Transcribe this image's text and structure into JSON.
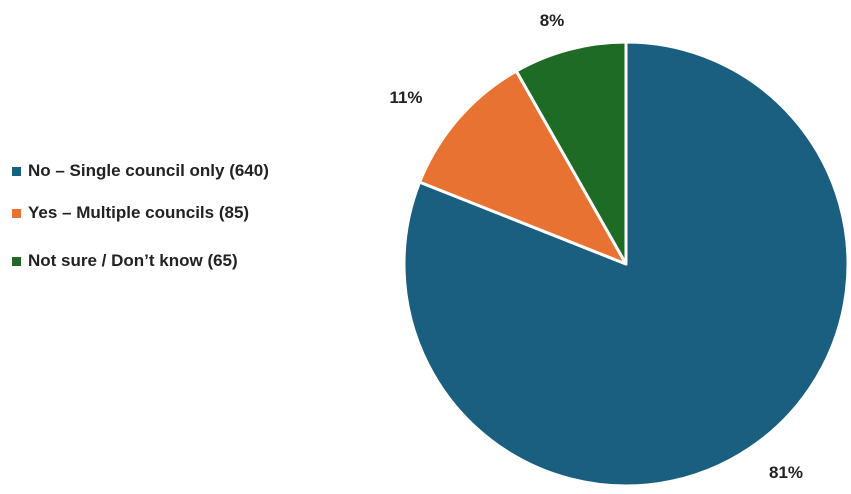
{
  "chart_data": {
    "type": "pie",
    "title": "",
    "slices": [
      {
        "label": "No – Single council only (640)",
        "value": 640,
        "percent_label": "81%",
        "color": "#1a5e80"
      },
      {
        "label": "Yes – Multiple councils (85)",
        "value": 85,
        "percent_label": "11%",
        "color": "#e87232"
      },
      {
        "label": "Not sure / Don’t know (65)",
        "value": 65,
        "percent_label": "8%",
        "color": "#1e6b26"
      }
    ],
    "legend_position": "left"
  }
}
